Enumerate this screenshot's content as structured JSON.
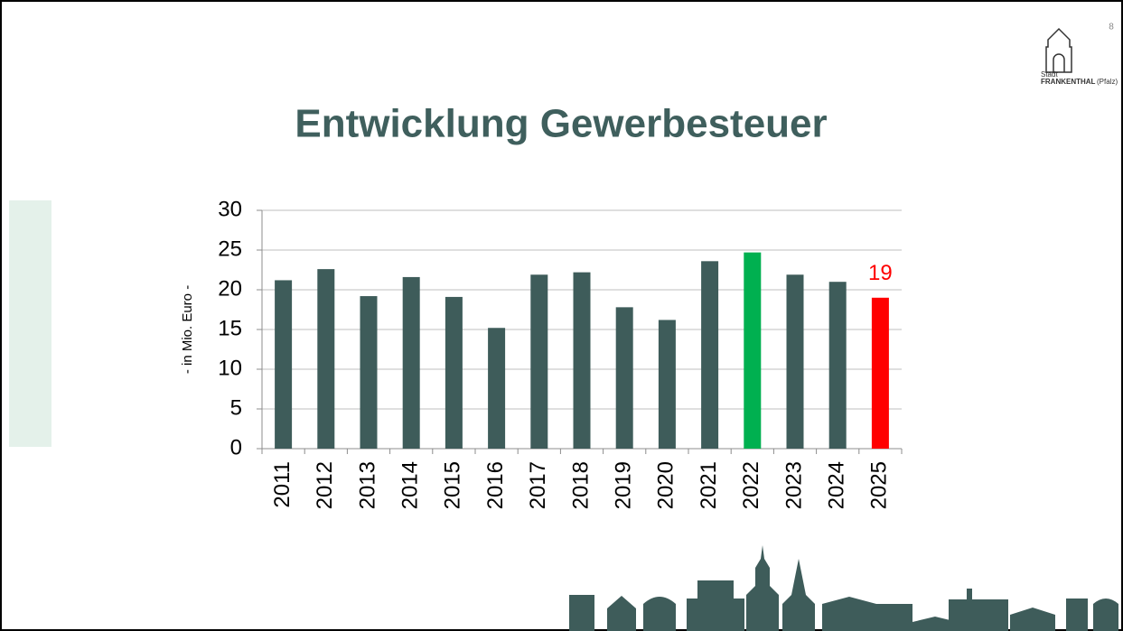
{
  "slide_number": "8",
  "logo": {
    "line1": "Stadt",
    "line2": "FRANKENTHAL",
    "line3": "(Pfalz)"
  },
  "chart_data": {
    "type": "bar",
    "title": "Entwicklung Gewerbesteuer",
    "y_label": "- in Mio. Euro -",
    "categories": [
      "2011",
      "2012",
      "2013",
      "2014",
      "2015",
      "2016",
      "2017",
      "2018",
      "2019",
      "2020",
      "2021",
      "2022",
      "2023",
      "2024",
      "2025"
    ],
    "values": [
      21.2,
      22.6,
      19.2,
      21.6,
      19.1,
      15.2,
      21.9,
      22.2,
      17.8,
      16.2,
      23.6,
      24.7,
      21.9,
      21.0,
      19.0
    ],
    "colors": [
      "#3e5c5a",
      "#3e5c5a",
      "#3e5c5a",
      "#3e5c5a",
      "#3e5c5a",
      "#3e5c5a",
      "#3e5c5a",
      "#3e5c5a",
      "#3e5c5a",
      "#3e5c5a",
      "#3e5c5a",
      "#00b050",
      "#3e5c5a",
      "#3e5c5a",
      "#ff0000"
    ],
    "value_labels": [
      null,
      null,
      null,
      null,
      null,
      null,
      null,
      null,
      null,
      null,
      null,
      null,
      null,
      null,
      "19"
    ],
    "ylim": [
      0,
      30
    ],
    "yticks": [
      0,
      5,
      10,
      15,
      20,
      25,
      30
    ],
    "grid": true
  }
}
